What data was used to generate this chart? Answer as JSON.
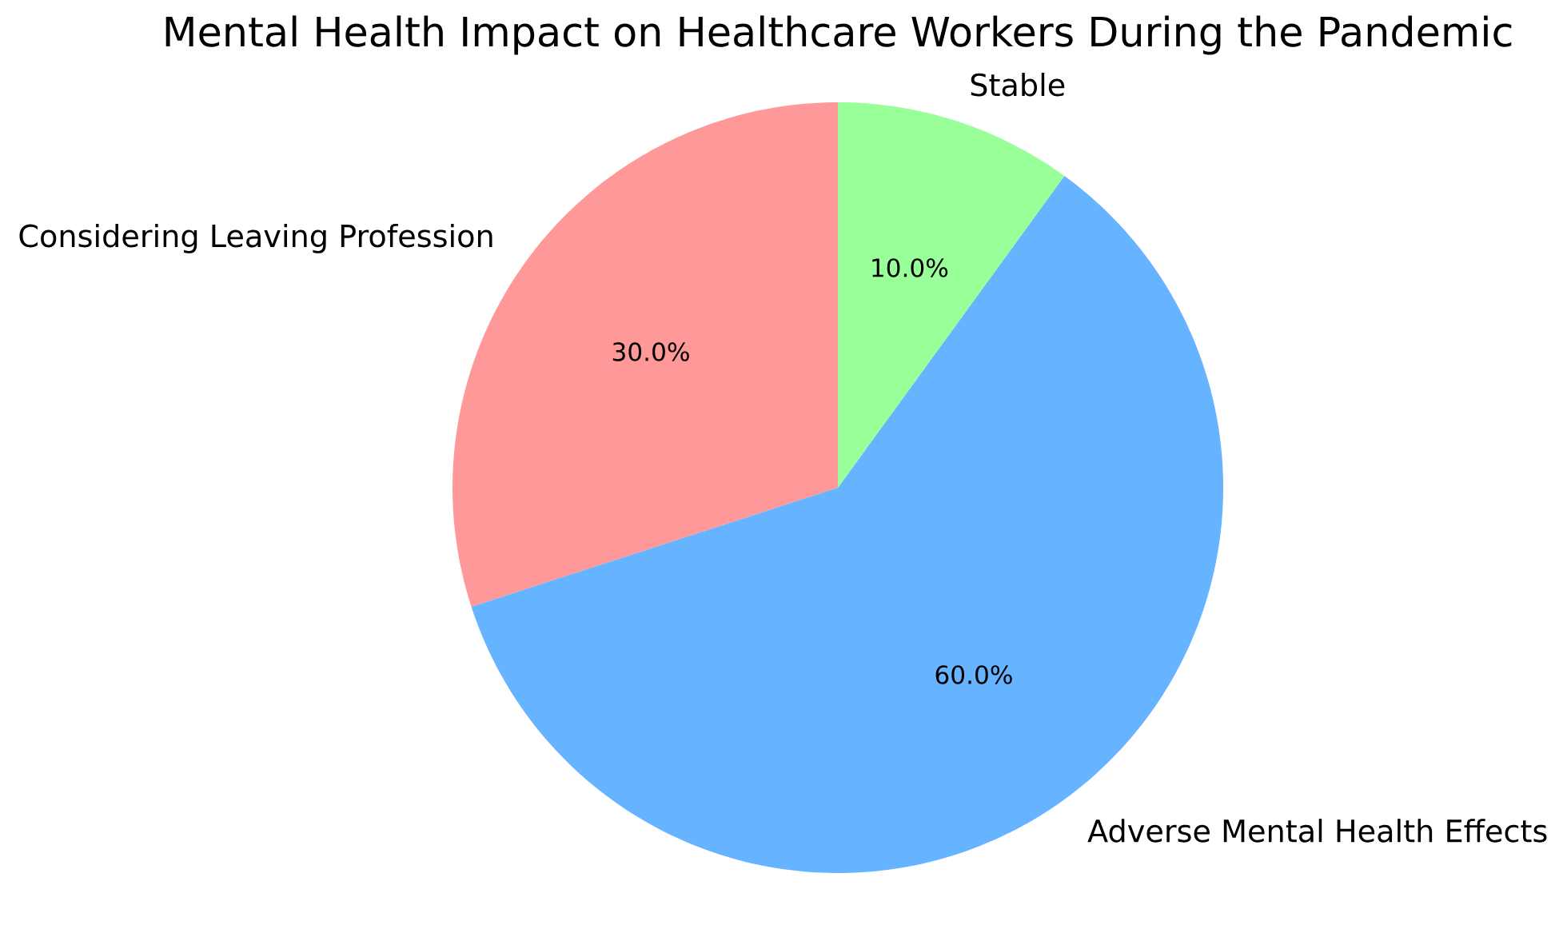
{
  "chart_data": {
    "type": "pie",
    "title": "Mental Health Impact on Healthcare Workers During the Pandemic",
    "categories": [
      "Considering Leaving Profession",
      "Adverse Mental Health Effects",
      "Stable"
    ],
    "values": [
      30,
      60,
      10
    ],
    "colors": [
      "#ff9999",
      "#66b3ff",
      "#99ff99"
    ],
    "value_labels": [
      "30.0%",
      "60.0%",
      "10.0%"
    ]
  }
}
